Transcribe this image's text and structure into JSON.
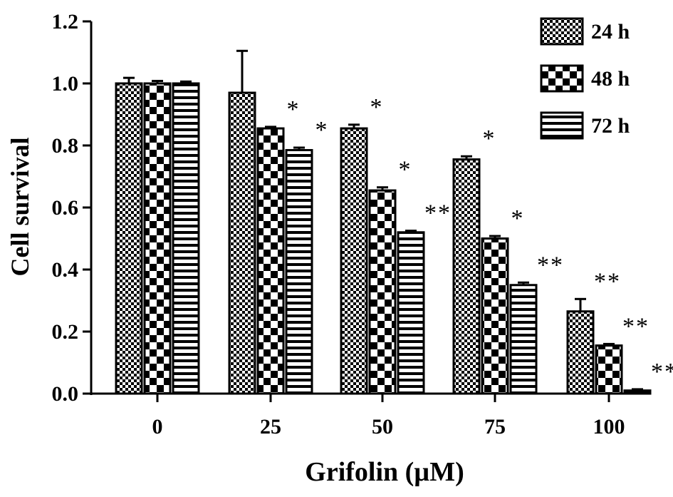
{
  "chart_data": {
    "type": "bar",
    "title": "",
    "xlabel": "Grifolin (µM)",
    "ylabel": "Cell survival",
    "ylim": [
      0,
      1.2
    ],
    "yticks": [
      "0.0",
      "0.2",
      "0.4",
      "0.6",
      "0.8",
      "1.0",
      "1.2"
    ],
    "categories": [
      "0",
      "25",
      "50",
      "75",
      "100"
    ],
    "grid": false,
    "legend_position": "top-right",
    "series": [
      {
        "name": "24 h",
        "pattern": "checker-fine",
        "values": [
          1.0,
          0.97,
          0.855,
          0.755,
          0.265
        ],
        "errors": [
          0.018,
          0.135,
          0.012,
          0.01,
          0.04
        ],
        "marks": [
          "",
          "",
          "*",
          "*",
          "**"
        ]
      },
      {
        "name": "48 h",
        "pattern": "checker-coarse",
        "values": [
          1.0,
          0.855,
          0.655,
          0.5,
          0.155
        ],
        "errors": [
          0.008,
          0.005,
          0.01,
          0.008,
          0.005
        ],
        "marks": [
          "",
          "*",
          "*",
          "*",
          "**"
        ]
      },
      {
        "name": "72 h",
        "pattern": "horizontal-stripes",
        "values": [
          1.0,
          0.785,
          0.52,
          0.35,
          0.01
        ],
        "errors": [
          0.006,
          0.008,
          0.005,
          0.008,
          0.004
        ],
        "marks": [
          "",
          "*",
          "**",
          "**",
          "**"
        ]
      }
    ],
    "colors": {
      "bar_stroke": "#000000",
      "pattern_fill": "#000000",
      "background": "#ffffff"
    }
  }
}
